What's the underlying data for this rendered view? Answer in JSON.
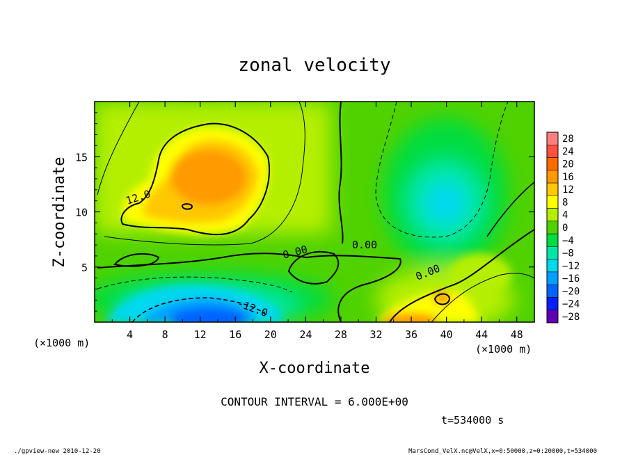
{
  "chart_data": {
    "type": "heatmap",
    "title": "zonal velocity",
    "xlabel": "X-coordinate",
    "ylabel": "Z-coordinate",
    "x_unit": "(×1000 m)",
    "z_unit": "(×1000 m)",
    "xlim": [
      0,
      50
    ],
    "ylim": [
      0,
      20
    ],
    "x_ticks": [
      4,
      8,
      12,
      16,
      20,
      24,
      28,
      32,
      36,
      40,
      44,
      48
    ],
    "y_ticks": [
      5,
      10,
      15
    ],
    "colorbar": {
      "levels": [
        28,
        24,
        20,
        16,
        12,
        8,
        4,
        0,
        -4,
        -8,
        -12,
        -16,
        -20,
        -24,
        -28
      ],
      "level_labels": [
        "28",
        "24",
        "20",
        "16",
        "12",
        "8",
        "4",
        "0",
        "−4",
        "−8",
        "−12",
        "−16",
        "−20",
        "−24",
        "−28"
      ],
      "colors": [
        "#ff7f7f",
        "#ff5040",
        "#ff6a00",
        "#ff9a00",
        "#ffc800",
        "#ffff00",
        "#b5ef00",
        "#4fd200",
        "#00dd40",
        "#00e8a8",
        "#00d8f0",
        "#00a0ff",
        "#0064ff",
        "#0020ff",
        "#6000b0"
      ]
    },
    "contour_interval_text": "CONTOUR INTERVAL = 6.000E+00",
    "contour_labels": [
      "12.0",
      "0.00",
      "0.00",
      "0.00",
      "-12.0"
    ],
    "features": [
      {
        "name": "positive jet core",
        "x": 13,
        "z": 13,
        "value": 16
      },
      {
        "name": "negative surface flow",
        "x": 15,
        "z": 1.5,
        "value": -18
      },
      {
        "name": "upper-right weak negative",
        "x": 40,
        "z": 11,
        "value": -8
      },
      {
        "name": "lower-right positive",
        "x": 37,
        "z": 1,
        "value": 14
      }
    ],
    "time_text": "t=534000 s"
  },
  "footer": {
    "left": "./gpview-new  2010-12-20",
    "right": "MarsCond_VelX.nc@VelX,x=0:50000,z=0:20000,t=534000"
  }
}
